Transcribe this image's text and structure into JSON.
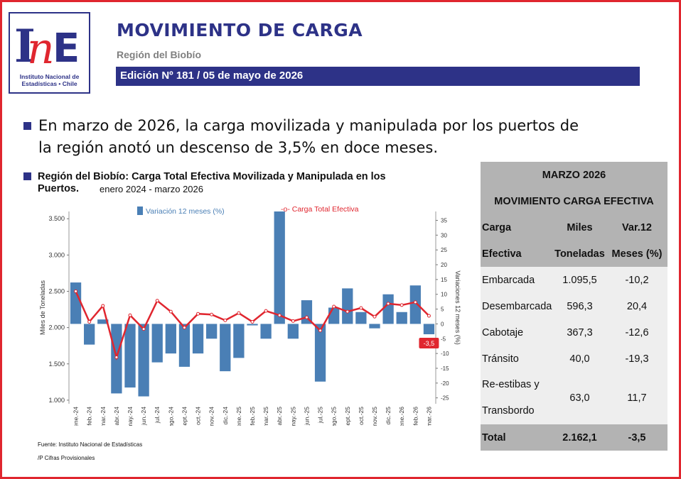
{
  "header": {
    "logo_letters": "INE",
    "logo_line1": "Instituto Nacional de",
    "logo_line2": "Estadísticas • Chile",
    "title": "MOVIMIENTO DE CARGA",
    "subtitle": "Región del Biobío",
    "edition": "Edición Nº 181 / 05 de mayo de 2026"
  },
  "headline": "En marzo de 2026, la carga movilizada y manipulada por los puertos de la región anotó un descenso de 3,5% en doce meses.",
  "chart_section": {
    "title_line1": "Región del Biobío: Carga Total Efectiva Movilizada y Manipulada en los",
    "title_line2": "Puertos.",
    "period": "enero 2024 - marzo 2026"
  },
  "chart_data": {
    "type": "bar",
    "categories": [
      "ene.-24",
      "feb.-24",
      "mar.-24",
      "abr.-24",
      "may.-24",
      "jun.-24",
      "jul.-24",
      "ago.-24",
      "sept.-24",
      "oct.-24",
      "nov.-24",
      "dic.-24",
      "ene.-25",
      "feb.-25",
      "mar.-25",
      "abr.-25",
      "may.-25",
      "jun.-25",
      "jul.-25",
      "ago.-25",
      "sept.-25",
      "oct.-25",
      "nov.-25",
      "dic.-25",
      "ene.-26",
      "feb.-26",
      "mar.-26"
    ],
    "series": [
      {
        "name": "Variación 12 meses (%)",
        "axis": "right",
        "color": "#4a7fb5",
        "values": [
          14,
          -7,
          1.5,
          -23.5,
          -21.5,
          -24.5,
          -13,
          -10,
          -14.5,
          -10,
          -5,
          -16,
          -11.5,
          -0.5,
          -5,
          38,
          -5,
          8,
          -19.5,
          5.5,
          12,
          4,
          -1.5,
          10,
          4,
          13,
          -3.5
        ]
      },
      {
        "name": "-o- Carga Total Efectiva",
        "axis": "left",
        "color": "#e0262f",
        "values": [
          2500,
          2080,
          2300,
          1590,
          2170,
          1980,
          2370,
          2220,
          2000,
          2190,
          2180,
          2100,
          2200,
          2080,
          2230,
          2170,
          2090,
          2140,
          1960,
          2290,
          2220,
          2270,
          2150,
          2330,
          2310,
          2350,
          2162.1
        ]
      }
    ],
    "ylabel": "Miles de Toneladas",
    "y2label": "Variaciones 12 meses (%)",
    "ylim": [
      950,
      3600
    ],
    "y2lim": [
      -27,
      38
    ],
    "yticks": [
      1000,
      1500,
      2000,
      2500,
      3000,
      3500
    ],
    "ytick_labels": [
      "1.000",
      "1.500",
      "2.000",
      "2.500",
      "3.000",
      "3.500"
    ],
    "y2ticks": [
      -25,
      -20,
      -15,
      -10,
      -5,
      0,
      5,
      10,
      15,
      20,
      25,
      30,
      35
    ],
    "annotation": "-3,5",
    "grid": false,
    "legend": "top"
  },
  "notes": {
    "source": "Fuente: Instituto Nacional de Estadísticas",
    "provisional": "/P Cifras Provisionales"
  },
  "table": {
    "title": "MARZO 2026",
    "subtitle": "MOVIMIENTO CARGA EFECTIVA",
    "header_row1": [
      "Carga",
      "Miles",
      "Var.12"
    ],
    "header_row2": [
      "Efectiva",
      "Toneladas",
      "Meses (%)"
    ],
    "rows": [
      {
        "label": "Embarcada",
        "value": "1.095,5",
        "var": "-10,2"
      },
      {
        "label": "Desembarcada",
        "value": "596,3",
        "var": "20,4"
      },
      {
        "label": "Cabotaje",
        "value": "367,3",
        "var": "-12,6"
      },
      {
        "label": "Tránsito",
        "value": "40,0",
        "var": "-19,3"
      }
    ],
    "restiba": {
      "label1": "Re-estibas y",
      "label2": "Transbordo",
      "value": "63,0",
      "var": "11,7"
    },
    "total": {
      "label": "Total",
      "value": "2.162,1",
      "var": "-3,5"
    }
  },
  "colors": {
    "brand": "#2d3287",
    "accent": "#e0262f",
    "bar": "#4a7fb5"
  }
}
